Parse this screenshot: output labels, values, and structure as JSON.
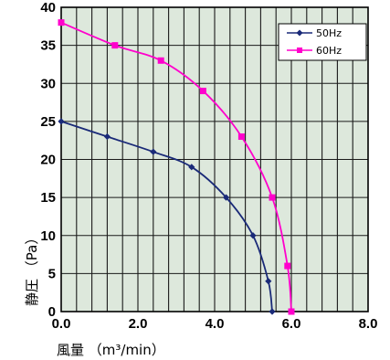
{
  "chart_data": {
    "type": "line",
    "title": "",
    "xlabel": "風量 （m³/min）",
    "ylabel": "静圧 （Pa）",
    "xlim": [
      0,
      8
    ],
    "ylim": [
      0,
      40
    ],
    "x_ticks": [
      "0.0",
      "2.0",
      "4.0",
      "6.0",
      "8.0"
    ],
    "y_ticks": [
      "0",
      "5",
      "10",
      "15",
      "20",
      "25",
      "30",
      "35",
      "40"
    ],
    "grid": true,
    "plot_background": "#dde8dc",
    "legend_position": "top-right",
    "series": [
      {
        "name": "50Hz",
        "color": "#1a2a78",
        "marker": "diamond",
        "points": [
          [
            0.0,
            25
          ],
          [
            1.2,
            23
          ],
          [
            2.4,
            21
          ],
          [
            3.4,
            19
          ],
          [
            4.3,
            15
          ],
          [
            5.0,
            10
          ],
          [
            5.4,
            4
          ],
          [
            5.5,
            0
          ]
        ]
      },
      {
        "name": "60Hz",
        "color": "#ff00cc",
        "marker": "square",
        "points": [
          [
            0.0,
            38
          ],
          [
            1.4,
            35
          ],
          [
            2.6,
            33
          ],
          [
            3.7,
            29
          ],
          [
            4.7,
            23
          ],
          [
            5.5,
            15
          ],
          [
            5.9,
            6
          ],
          [
            6.0,
            0
          ]
        ]
      }
    ]
  }
}
